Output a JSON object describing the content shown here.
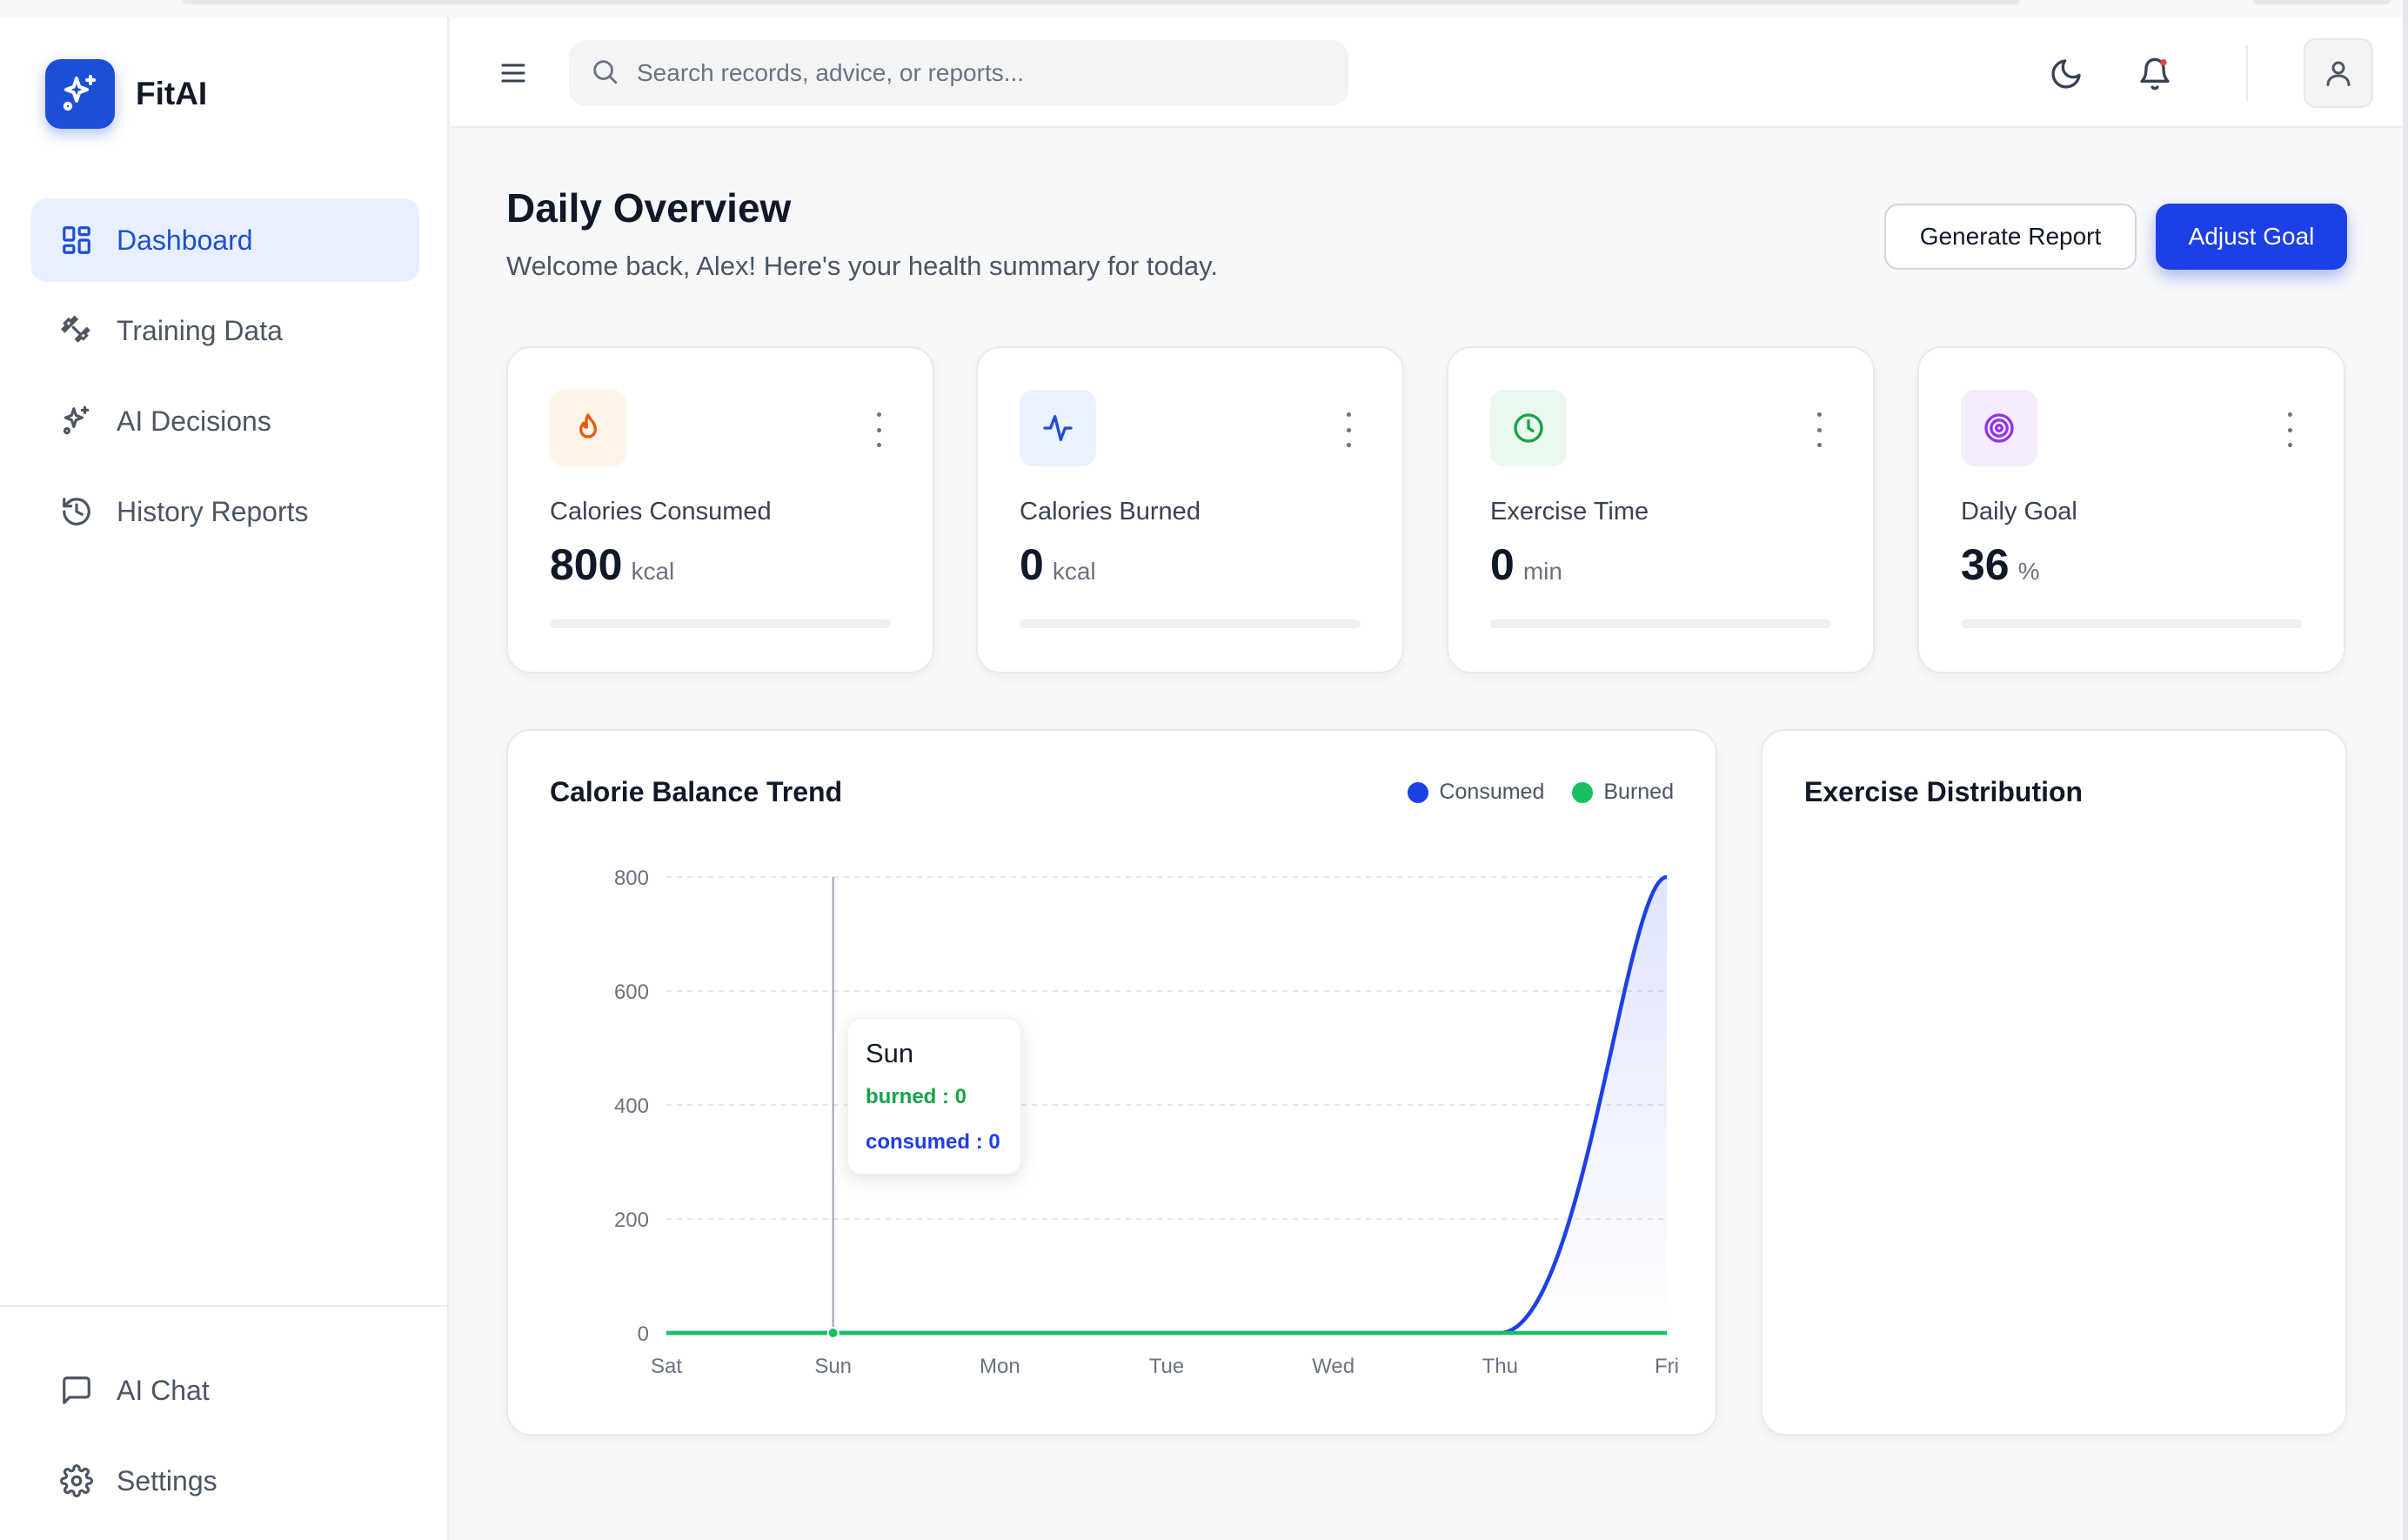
{
  "brand": {
    "name": "FitAI"
  },
  "sidebar": {
    "items": [
      {
        "label": "Dashboard",
        "icon": "dashboard-grid-icon",
        "active": true
      },
      {
        "label": "Training Data",
        "icon": "dumbbell-icon",
        "active": false
      },
      {
        "label": "AI Decisions",
        "icon": "sparkles-icon",
        "active": false
      },
      {
        "label": "History Reports",
        "icon": "history-icon",
        "active": false
      }
    ],
    "bottom_items": [
      {
        "label": "AI Chat",
        "icon": "chat-bubble-icon"
      },
      {
        "label": "Settings",
        "icon": "gear-icon"
      }
    ]
  },
  "header": {
    "search_placeholder": "Search records, advice, or reports...",
    "icons": [
      "menu-icon",
      "search-icon",
      "moon-icon",
      "bell-icon",
      "user-icon"
    ],
    "notification_dot_color": "#ef4444"
  },
  "main": {
    "title": "Daily Overview",
    "subtitle": "Welcome back, Alex! Here's your health summary for today.",
    "generate_report_label": "Generate Report",
    "adjust_goal_label": "Adjust Goal"
  },
  "stats": [
    {
      "label": "Calories Consumed",
      "value": "800",
      "unit": "kcal",
      "icon": "flame-icon",
      "icon_color": "#ea580c",
      "icon_bg": "#fff4e8",
      "progress": 0
    },
    {
      "label": "Calories Burned",
      "value": "0",
      "unit": "kcal",
      "icon": "activity-pulse-icon",
      "icon_color": "#1d4ed8",
      "icon_bg": "#eaf1ff",
      "progress": 0
    },
    {
      "label": "Exercise Time",
      "value": "0",
      "unit": "min",
      "icon": "clock-icon",
      "icon_color": "#16a34a",
      "icon_bg": "#eaf8ee",
      "progress": 0
    },
    {
      "label": "Daily Goal",
      "value": "36",
      "unit": "%",
      "icon": "target-icon",
      "icon_color": "#9333ea",
      "icon_bg": "#f5ecff",
      "progress": 0
    }
  ],
  "calorie_chart": {
    "title": "Calorie Balance Trend",
    "legend": [
      {
        "name": "Consumed",
        "color": "#1d3fe8"
      },
      {
        "name": "Burned",
        "color": "#16c060"
      }
    ],
    "tooltip": {
      "title": "Sun",
      "burned_text": "burned : 0",
      "consumed_text": "consumed : 0"
    }
  },
  "exercise_distribution": {
    "title": "Exercise Distribution"
  },
  "chart_data": {
    "type": "area",
    "categories": [
      "Sat",
      "Sun",
      "Mon",
      "Tue",
      "Wed",
      "Thu",
      "Fri"
    ],
    "series": [
      {
        "name": "Consumed",
        "values": [
          0,
          0,
          0,
          0,
          0,
          0,
          800
        ],
        "color": "#1d3fe8"
      },
      {
        "name": "Burned",
        "values": [
          0,
          0,
          0,
          0,
          0,
          0,
          0
        ],
        "color": "#16c060"
      }
    ],
    "yticks": [
      0,
      200,
      400,
      600,
      800
    ],
    "ylim": [
      0,
      800
    ],
    "grid": true,
    "legend_position": "top-right",
    "active_category": "Sun"
  }
}
